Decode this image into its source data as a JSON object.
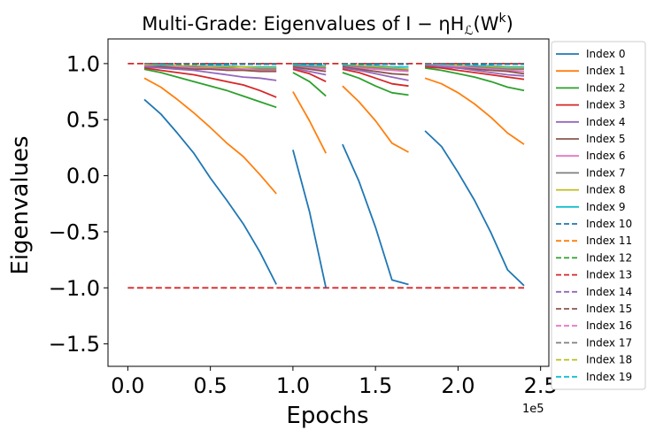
{
  "chart_data": {
    "type": "line",
    "title": "Multi-Grade: Eigenvalues of I − ηH",
    "title_sub": "ℒ",
    "title_arg": "(W",
    "title_sup": "k",
    "title_close": ")",
    "xlabel": "Epochs",
    "ylabel": "Eigenvalues",
    "x_offset_label": "1e5",
    "xlim": [
      -0.12,
      2.55
    ],
    "ylim": [
      -1.7,
      1.22
    ],
    "xticks": [
      0.0,
      0.5,
      1.0,
      1.5,
      2.0,
      2.5
    ],
    "xtick_labels": [
      "0.0",
      "0.5",
      "1.0",
      "1.5",
      "2.0",
      "2.5"
    ],
    "yticks": [
      1.0,
      0.5,
      0.0,
      -0.5,
      -1.0,
      -1.5
    ],
    "ytick_labels": [
      "1.0",
      "0.5",
      "0.0",
      "−0.5",
      "−1.0",
      "−1.5"
    ],
    "grid": false,
    "legend_position": "outside-right",
    "reference_lines": [
      {
        "y": 1.0,
        "x": [
          0.0,
          2.4
        ],
        "color": "#d62728",
        "style": "dashed"
      },
      {
        "y": -1.0,
        "x": [
          0.0,
          2.4
        ],
        "color": "#d62728",
        "style": "dashed"
      }
    ],
    "segments": [
      [
        0.1,
        0.2,
        0.3,
        0.4,
        0.5,
        0.6,
        0.7,
        0.8,
        0.9
      ],
      [
        1.0,
        1.1,
        1.2
      ],
      [
        1.3,
        1.4,
        1.5,
        1.6,
        1.7
      ],
      [
        1.8,
        1.9,
        2.0,
        2.1,
        2.2,
        2.3,
        2.4
      ]
    ],
    "series": [
      {
        "name": "Index 0",
        "color": "#1f77b4",
        "style": "solid",
        "values": [
          [
            0.68,
            0.55,
            0.38,
            0.2,
            -0.02,
            -0.22,
            -0.43,
            -0.68,
            -0.97
          ],
          [
            0.23,
            -0.32,
            -1.0
          ],
          [
            0.28,
            -0.05,
            -0.46,
            -0.93,
            -0.97
          ],
          [
            0.4,
            0.26,
            0.03,
            -0.22,
            -0.51,
            -0.84,
            -0.98
          ]
        ]
      },
      {
        "name": "Index 1",
        "color": "#ff7f0e",
        "style": "solid",
        "values": [
          [
            0.87,
            0.79,
            0.68,
            0.56,
            0.43,
            0.29,
            0.17,
            0.01,
            -0.16
          ],
          [
            0.75,
            0.49,
            0.2
          ],
          [
            0.8,
            0.66,
            0.49,
            0.29,
            0.21
          ],
          [
            0.87,
            0.82,
            0.74,
            0.64,
            0.52,
            0.38,
            0.28
          ]
        ]
      },
      {
        "name": "Index 2",
        "color": "#2ca02c",
        "style": "solid",
        "values": [
          [
            0.95,
            0.92,
            0.88,
            0.84,
            0.8,
            0.76,
            0.71,
            0.66,
            0.61
          ],
          [
            0.92,
            0.84,
            0.71
          ],
          [
            0.92,
            0.87,
            0.8,
            0.74,
            0.72
          ],
          [
            0.96,
            0.94,
            0.91,
            0.88,
            0.84,
            0.79,
            0.76
          ]
        ]
      },
      {
        "name": "Index 3",
        "color": "#d62728",
        "style": "solid",
        "values": [
          [
            0.96,
            0.94,
            0.92,
            0.9,
            0.87,
            0.84,
            0.81,
            0.76,
            0.7
          ],
          [
            0.95,
            0.91,
            0.84
          ],
          [
            0.95,
            0.92,
            0.87,
            0.82,
            0.8
          ],
          [
            0.97,
            0.96,
            0.94,
            0.92,
            0.9,
            0.88,
            0.86
          ]
        ]
      },
      {
        "name": "Index 4",
        "color": "#9467bd",
        "style": "solid",
        "values": [
          [
            0.97,
            0.96,
            0.95,
            0.94,
            0.92,
            0.9,
            0.88,
            0.87,
            0.85
          ],
          [
            0.96,
            0.93,
            0.9
          ],
          [
            0.96,
            0.94,
            0.91,
            0.88,
            0.85
          ],
          [
            0.98,
            0.97,
            0.96,
            0.94,
            0.92,
            0.9,
            0.89
          ]
        ]
      },
      {
        "name": "Index 5",
        "color": "#8c564b",
        "style": "solid",
        "values": [
          [
            0.97,
            0.97,
            0.96,
            0.95,
            0.95,
            0.94,
            0.94,
            0.93,
            0.93
          ],
          [
            0.97,
            0.95,
            0.93
          ],
          [
            0.97,
            0.95,
            0.93,
            0.91,
            0.9
          ],
          [
            0.98,
            0.97,
            0.96,
            0.95,
            0.94,
            0.93,
            0.91
          ]
        ]
      },
      {
        "name": "Index 6",
        "color": "#e377c2",
        "style": "solid",
        "values": [
          [
            0.98,
            0.97,
            0.97,
            0.96,
            0.96,
            0.95,
            0.95,
            0.94,
            0.94
          ],
          [
            0.97,
            0.96,
            0.95
          ],
          [
            0.97,
            0.96,
            0.95,
            0.94,
            0.93
          ],
          [
            0.98,
            0.98,
            0.97,
            0.96,
            0.95,
            0.94,
            0.93
          ]
        ]
      },
      {
        "name": "Index 7",
        "color": "#7f7f7f",
        "style": "solid",
        "values": [
          [
            0.98,
            0.98,
            0.97,
            0.97,
            0.96,
            0.96,
            0.95,
            0.95,
            0.95
          ],
          [
            0.98,
            0.97,
            0.96
          ],
          [
            0.98,
            0.97,
            0.96,
            0.95,
            0.94
          ],
          [
            0.99,
            0.98,
            0.97,
            0.97,
            0.96,
            0.95,
            0.95
          ]
        ]
      },
      {
        "name": "Index 8",
        "color": "#bcbd22",
        "style": "solid",
        "values": [
          [
            0.99,
            0.98,
            0.98,
            0.98,
            0.97,
            0.97,
            0.97,
            0.96,
            0.96
          ],
          [
            0.98,
            0.97,
            0.97
          ],
          [
            0.98,
            0.98,
            0.97,
            0.96,
            0.95
          ],
          [
            0.99,
            0.98,
            0.98,
            0.97,
            0.97,
            0.96,
            0.96
          ]
        ]
      },
      {
        "name": "Index 9",
        "color": "#17becf",
        "style": "solid",
        "values": [
          [
            0.99,
            0.99,
            0.98,
            0.98,
            0.98,
            0.98,
            0.97,
            0.97,
            0.97
          ],
          [
            0.99,
            0.98,
            0.98
          ],
          [
            0.99,
            0.98,
            0.98,
            0.97,
            0.97
          ],
          [
            0.99,
            0.99,
            0.98,
            0.98,
            0.98,
            0.97,
            0.97
          ]
        ]
      },
      {
        "name": "Index 10",
        "color": "#1f77b4",
        "style": "dashed",
        "values": [
          [
            0.995,
            0.995,
            0.995,
            0.995,
            0.995,
            0.995,
            0.995,
            0.995,
            0.995
          ],
          [
            0.995,
            0.995,
            0.995
          ],
          [
            0.995,
            0.995,
            0.995,
            0.995,
            0.995
          ],
          [
            0.995,
            0.995,
            0.995,
            0.995,
            0.995,
            0.995,
            0.995
          ]
        ]
      },
      {
        "name": "Index 11",
        "color": "#ff7f0e",
        "style": "dashed",
        "values": [
          [
            0.996,
            0.996,
            0.996,
            0.996,
            0.996,
            0.996,
            0.996,
            0.996,
            0.996
          ],
          [
            0.996,
            0.996,
            0.996
          ],
          [
            0.996,
            0.996,
            0.996,
            0.996,
            0.996
          ],
          [
            0.996,
            0.996,
            0.996,
            0.996,
            0.996,
            0.996,
            0.996
          ]
        ]
      },
      {
        "name": "Index 12",
        "color": "#2ca02c",
        "style": "dashed",
        "values": [
          [
            0.997,
            0.997,
            0.997,
            0.997,
            0.997,
            0.997,
            0.997,
            0.997,
            0.997
          ],
          [
            0.997,
            0.997,
            0.997
          ],
          [
            0.997,
            0.997,
            0.997,
            0.997,
            0.997
          ],
          [
            0.997,
            0.997,
            0.997,
            0.997,
            0.997,
            0.997,
            0.997
          ]
        ]
      },
      {
        "name": "Index 13",
        "color": "#d62728",
        "style": "dashed",
        "values": [
          [
            0.998,
            0.998,
            0.998,
            0.998,
            0.998,
            0.998,
            0.998,
            0.998,
            0.998
          ],
          [
            0.998,
            0.998,
            0.998
          ],
          [
            0.998,
            0.998,
            0.998,
            0.998,
            0.998
          ],
          [
            0.998,
            0.998,
            0.998,
            0.998,
            0.998,
            0.998,
            0.998
          ]
        ]
      },
      {
        "name": "Index 14",
        "color": "#9467bd",
        "style": "dashed",
        "values": [
          [
            0.998,
            0.998,
            0.998,
            0.998,
            0.998,
            0.998,
            0.998,
            0.998,
            0.998
          ],
          [
            0.998,
            0.998,
            0.998
          ],
          [
            0.998,
            0.998,
            0.998,
            0.998,
            0.998
          ],
          [
            0.998,
            0.998,
            0.998,
            0.998,
            0.998,
            0.998,
            0.998
          ]
        ]
      },
      {
        "name": "Index 15",
        "color": "#8c564b",
        "style": "dashed",
        "values": [
          [
            0.999,
            0.999,
            0.999,
            0.999,
            0.999,
            0.999,
            0.999,
            0.999,
            0.999
          ],
          [
            0.999,
            0.999,
            0.999
          ],
          [
            0.999,
            0.999,
            0.999,
            0.999,
            0.999
          ],
          [
            0.999,
            0.999,
            0.999,
            0.999,
            0.999,
            0.999,
            0.999
          ]
        ]
      },
      {
        "name": "Index 16",
        "color": "#e377c2",
        "style": "dashed",
        "values": [
          [
            0.999,
            0.999,
            0.999,
            0.999,
            0.999,
            0.999,
            0.999,
            0.999,
            0.999
          ],
          [
            0.999,
            0.999,
            0.999
          ],
          [
            0.999,
            0.999,
            0.999,
            0.999,
            0.999
          ],
          [
            0.999,
            0.999,
            0.999,
            0.999,
            0.999,
            0.999,
            0.999
          ]
        ]
      },
      {
        "name": "Index 17",
        "color": "#7f7f7f",
        "style": "dashed",
        "values": [
          [
            1.0,
            1.0,
            1.0,
            1.0,
            1.0,
            1.0,
            1.0,
            1.0,
            1.0
          ],
          [
            1.0,
            1.0,
            1.0
          ],
          [
            1.0,
            1.0,
            1.0,
            1.0,
            1.0
          ],
          [
            1.0,
            1.0,
            1.0,
            1.0,
            1.0,
            1.0,
            1.0
          ]
        ]
      },
      {
        "name": "Index 18",
        "color": "#bcbd22",
        "style": "dashed",
        "values": [
          [
            1.0,
            1.0,
            1.0,
            1.0,
            1.0,
            1.0,
            1.0,
            1.0,
            1.0
          ],
          [
            1.0,
            1.0,
            1.0
          ],
          [
            1.0,
            1.0,
            1.0,
            1.0,
            1.0
          ],
          [
            1.0,
            1.0,
            1.0,
            1.0,
            1.0,
            1.0,
            1.0
          ]
        ]
      },
      {
        "name": "Index 19",
        "color": "#17becf",
        "style": "dashed",
        "values": [
          [
            1.0,
            1.0,
            1.0,
            1.0,
            1.0,
            1.0,
            1.0,
            1.0,
            1.0
          ],
          [
            1.0,
            1.0,
            1.0
          ],
          [
            1.0,
            1.0,
            1.0,
            1.0,
            1.0
          ],
          [
            1.0,
            1.0,
            1.0,
            1.0,
            1.0,
            1.0,
            1.0
          ]
        ]
      }
    ]
  }
}
